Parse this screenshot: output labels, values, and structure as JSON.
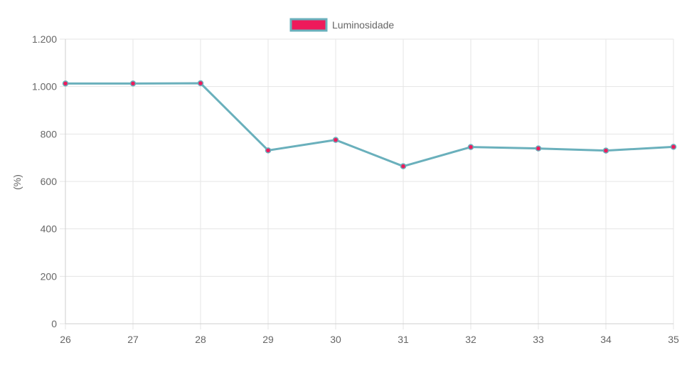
{
  "chart_data": {
    "type": "line",
    "title": "",
    "xlabel": "",
    "ylabel": "(%)",
    "categories": [
      "26",
      "27",
      "28",
      "29",
      "30",
      "31",
      "32",
      "33",
      "34",
      "35"
    ],
    "series": [
      {
        "name": "Luminosidade",
        "values": [
          1013,
          1013,
          1014,
          731,
          775,
          664,
          745,
          739,
          730,
          746
        ],
        "line_color": "#6ab0bc",
        "point_color": "#ee1a5b"
      }
    ],
    "ylim": [
      0,
      1200
    ],
    "yticks": [
      0,
      200,
      400,
      600,
      800,
      1000,
      1200
    ],
    "ytick_labels": [
      "0",
      "200",
      "400",
      "600",
      "800",
      "1.000",
      "1.200"
    ],
    "grid": true,
    "legend_position": "top-center",
    "colors": {
      "grid": "#e5e5e5",
      "axis": "#cfcfcf",
      "text": "#666666"
    }
  }
}
